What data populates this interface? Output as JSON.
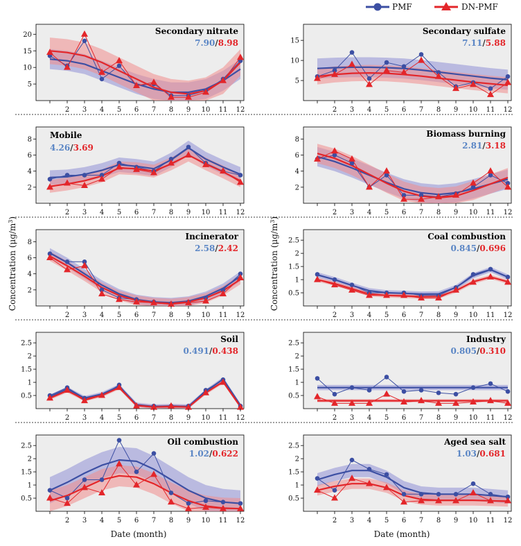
{
  "colors": {
    "pmf": "#3c4fa3",
    "dn": "#e3262a",
    "pmf_band": "#8f8fd6",
    "dn_band": "#f08c8c",
    "panel_bg": "#ededed",
    "sep": "#000000"
  },
  "legend": {
    "pmf": "PMF",
    "dn": "DN-PMF"
  },
  "xlabel": "Date (month)",
  "ylabel_left": "Concentration (μg/m",
  "ylabel_right": "Concentration (μg/m",
  "ylabel_sup": "3",
  "ylabel_close": ")",
  "stat_sep": "/",
  "chart_data": [
    {
      "type": "line",
      "title": "Secondary nitrate",
      "stat_pmf": "7.90",
      "stat_dn": "8.98",
      "x": [
        1,
        2,
        3,
        4,
        5,
        6,
        7,
        8,
        9,
        10,
        11,
        12
      ],
      "ylim": [
        0,
        23
      ],
      "yticks": [
        5,
        10,
        15,
        20
      ],
      "series": [
        {
          "name": "PMF",
          "values": [
            13.5,
            10.5,
            18.0,
            6.5,
            10.5,
            4.5,
            5.0,
            1.5,
            1.5,
            3.0,
            6.5,
            12.0
          ],
          "fit": [
            12.5,
            12.0,
            11.0,
            9.0,
            7.0,
            5.0,
            3.5,
            2.5,
            2.5,
            3.5,
            6.0,
            9.5
          ],
          "band": 3.0
        },
        {
          "name": "DN-PMF",
          "values": [
            14.5,
            10.0,
            20.0,
            8.5,
            12.0,
            4.5,
            5.5,
            1.0,
            1.0,
            2.5,
            6.0,
            13.0
          ],
          "fit": [
            15.0,
            14.5,
            13.5,
            11.5,
            9.0,
            6.5,
            4.0,
            2.5,
            2.0,
            3.0,
            6.0,
            11.5
          ],
          "band": 4.0
        }
      ]
    },
    {
      "type": "line",
      "title": "Secondary sulfate",
      "stat_pmf": "7.11",
      "stat_dn": "5.88",
      "x": [
        1,
        2,
        3,
        4,
        5,
        6,
        7,
        8,
        9,
        10,
        11,
        12
      ],
      "ylim": [
        0,
        19
      ],
      "yticks": [
        5,
        10,
        15
      ],
      "series": [
        {
          "name": "PMF",
          "values": [
            6.0,
            7.5,
            12.0,
            5.5,
            9.5,
            8.5,
            11.5,
            7.0,
            3.5,
            4.5,
            3.0,
            6.0
          ],
          "fit": [
            8.0,
            8.2,
            8.3,
            8.3,
            8.2,
            8.0,
            7.6,
            7.1,
            6.6,
            6.1,
            5.6,
            5.2
          ],
          "band": 2.5
        },
        {
          "name": "DN-PMF",
          "values": [
            5.5,
            6.5,
            9.0,
            4.0,
            7.5,
            7.0,
            10.0,
            6.0,
            3.0,
            4.0,
            1.5,
            4.5
          ],
          "fit": [
            6.0,
            6.5,
            6.8,
            6.9,
            6.8,
            6.5,
            6.1,
            5.6,
            5.1,
            4.6,
            4.2,
            3.8
          ],
          "band": 2.0
        }
      ]
    },
    {
      "type": "line",
      "title": "Mobile",
      "stat_pmf": "4.26",
      "stat_dn": "3.69",
      "x": [
        1,
        2,
        3,
        4,
        5,
        6,
        7,
        8,
        9,
        10,
        11,
        12
      ],
      "ylim": [
        0,
        9.5
      ],
      "yticks": [
        2,
        4,
        6,
        8
      ],
      "series": [
        {
          "name": "PMF",
          "values": [
            3.0,
            3.5,
            3.5,
            3.5,
            5.0,
            4.5,
            4.0,
            5.5,
            7.0,
            5.0,
            4.0,
            3.5
          ],
          "fit": [
            3.2,
            3.3,
            3.6,
            4.1,
            4.8,
            4.6,
            4.3,
            5.4,
            6.9,
            5.5,
            4.5,
            3.6
          ],
          "band": 0.9
        },
        {
          "name": "DN-PMF",
          "values": [
            2.0,
            2.5,
            2.2,
            3.0,
            4.5,
            4.2,
            3.8,
            5.0,
            6.0,
            4.8,
            4.0,
            2.6
          ],
          "fit": [
            2.1,
            2.4,
            2.8,
            3.4,
            4.4,
            4.3,
            4.0,
            4.9,
            6.0,
            4.9,
            3.9,
            2.8
          ],
          "band": 0.8
        }
      ]
    },
    {
      "type": "line",
      "title": "Biomass burning",
      "stat_pmf": "2.81",
      "stat_dn": "3.18",
      "x": [
        1,
        2,
        3,
        4,
        5,
        6,
        7,
        8,
        9,
        10,
        11,
        12
      ],
      "ylim": [
        0,
        9.5
      ],
      "yticks": [
        2,
        4,
        6,
        8
      ],
      "series": [
        {
          "name": "PMF",
          "values": [
            5.5,
            6.0,
            5.0,
            2.0,
            3.5,
            1.0,
            1.0,
            0.8,
            1.2,
            2.0,
            3.5,
            2.5
          ],
          "fit": [
            5.8,
            5.2,
            4.4,
            3.5,
            2.6,
            1.8,
            1.3,
            1.1,
            1.3,
            1.8,
            2.4,
            3.0
          ],
          "band": 1.2
        },
        {
          "name": "DN-PMF",
          "values": [
            5.5,
            6.5,
            5.5,
            2.0,
            4.0,
            0.5,
            0.5,
            0.8,
            1.0,
            2.5,
            4.0,
            2.0
          ],
          "fit": [
            6.2,
            5.6,
            4.7,
            3.6,
            2.5,
            1.5,
            0.9,
            0.7,
            0.9,
            1.6,
            2.4,
            3.2
          ],
          "band": 1.2
        }
      ]
    },
    {
      "type": "line",
      "title": "Incinerator",
      "stat_pmf": "2.58",
      "stat_dn": "2.42",
      "x": [
        1,
        2,
        3,
        4,
        5,
        6,
        7,
        8,
        9,
        10,
        11,
        12
      ],
      "ylim": [
        0,
        9.5
      ],
      "yticks": [
        2,
        4,
        6,
        8
      ],
      "series": [
        {
          "name": "PMF",
          "values": [
            6.5,
            5.5,
            5.5,
            2.0,
            1.0,
            0.8,
            0.5,
            0.3,
            0.5,
            1.0,
            2.0,
            4.0
          ],
          "fit": [
            6.6,
            5.4,
            4.0,
            2.6,
            1.5,
            0.8,
            0.5,
            0.4,
            0.6,
            1.2,
            2.2,
            3.7
          ],
          "band": 0.6
        },
        {
          "name": "DN-PMF",
          "values": [
            6.0,
            4.5,
            5.0,
            1.5,
            0.8,
            0.5,
            0.4,
            0.2,
            0.4,
            0.6,
            1.5,
            3.5
          ],
          "fit": [
            6.2,
            5.0,
            3.7,
            2.3,
            1.3,
            0.7,
            0.4,
            0.3,
            0.5,
            1.0,
            1.9,
            3.3
          ],
          "band": 0.6
        }
      ]
    },
    {
      "type": "line",
      "title": "Coal combustion",
      "stat_pmf": "0.845",
      "stat_dn": "0.696",
      "x": [
        1,
        2,
        3,
        4,
        5,
        6,
        7,
        8,
        9,
        10,
        11,
        12
      ],
      "ylim": [
        0,
        2.9
      ],
      "yticks": [
        0.5,
        1.0,
        1.5,
        2.0,
        2.5
      ],
      "series": [
        {
          "name": "PMF",
          "values": [
            1.2,
            1.0,
            0.8,
            0.5,
            0.5,
            0.5,
            0.4,
            0.4,
            0.7,
            1.2,
            1.4,
            1.1
          ],
          "fit": [
            1.18,
            1.0,
            0.78,
            0.58,
            0.5,
            0.48,
            0.45,
            0.46,
            0.7,
            1.15,
            1.38,
            1.1
          ],
          "band": 0.1
        },
        {
          "name": "DN-PMF",
          "values": [
            1.0,
            0.8,
            0.6,
            0.4,
            0.4,
            0.4,
            0.3,
            0.3,
            0.6,
            0.9,
            1.1,
            0.9
          ],
          "fit": [
            1.0,
            0.85,
            0.65,
            0.45,
            0.4,
            0.38,
            0.35,
            0.36,
            0.58,
            0.92,
            1.1,
            0.92
          ],
          "band": 0.08
        }
      ]
    },
    {
      "type": "line",
      "title": "Soil",
      "stat_pmf": "0.491",
      "stat_dn": "0.438",
      "x": [
        1,
        2,
        3,
        4,
        5,
        6,
        7,
        8,
        9,
        10,
        11,
        12
      ],
      "ylim": [
        0,
        2.9
      ],
      "yticks": [
        0.5,
        1.0,
        1.5,
        2.0,
        2.5
      ],
      "series": [
        {
          "name": "PMF",
          "values": [
            0.5,
            0.8,
            0.4,
            0.5,
            0.9,
            0.1,
            0.1,
            0.1,
            0.1,
            0.7,
            1.1,
            0.1
          ],
          "fit": [
            0.45,
            0.75,
            0.4,
            0.55,
            0.85,
            0.15,
            0.08,
            0.1,
            0.08,
            0.65,
            1.12,
            0.12
          ],
          "band": 0.08
        },
        {
          "name": "DN-PMF",
          "values": [
            0.4,
            0.7,
            0.3,
            0.5,
            0.8,
            0.1,
            0.05,
            0.1,
            0.05,
            0.6,
            1.0,
            0.05
          ],
          "fit": [
            0.4,
            0.68,
            0.35,
            0.5,
            0.8,
            0.12,
            0.06,
            0.08,
            0.06,
            0.6,
            1.02,
            0.08
          ],
          "band": 0.07
        }
      ]
    },
    {
      "type": "line",
      "title": "Industry",
      "stat_pmf": "0.805",
      "stat_dn": "0.310",
      "x": [
        1,
        2,
        3,
        4,
        5,
        6,
        7,
        8,
        9,
        10,
        11,
        12
      ],
      "ylim": [
        0,
        2.9
      ],
      "yticks": [
        0.5,
        1.0,
        1.5,
        2.0,
        2.5
      ],
      "series": [
        {
          "name": "PMF",
          "values": [
            1.15,
            0.55,
            0.8,
            0.7,
            1.2,
            0.65,
            0.7,
            0.6,
            0.55,
            0.8,
            0.95,
            0.65
          ],
          "fit": [
            0.8,
            0.8,
            0.8,
            0.8,
            0.8,
            0.8,
            0.8,
            0.8,
            0.8,
            0.8,
            0.8,
            0.8
          ],
          "band": 0.1
        },
        {
          "name": "DN-PMF",
          "values": [
            0.45,
            0.2,
            0.2,
            0.2,
            0.55,
            0.25,
            0.3,
            0.2,
            0.2,
            0.25,
            0.3,
            0.2
          ],
          "fit": [
            0.3,
            0.3,
            0.3,
            0.3,
            0.3,
            0.3,
            0.3,
            0.3,
            0.3,
            0.3,
            0.3,
            0.3
          ],
          "band": 0.06
        }
      ]
    },
    {
      "type": "line",
      "title": "Oil combustion",
      "stat_pmf": "1.02",
      "stat_dn": "0.622",
      "x": [
        1,
        2,
        3,
        4,
        5,
        6,
        7,
        8,
        9,
        10,
        11,
        12
      ],
      "ylim": [
        0,
        2.9
      ],
      "yticks": [
        0.5,
        1.0,
        1.5,
        2.0,
        2.5
      ],
      "series": [
        {
          "name": "PMF",
          "values": [
            0.8,
            0.5,
            1.2,
            1.2,
            2.7,
            1.5,
            2.2,
            0.7,
            0.3,
            0.4,
            0.35,
            0.3
          ],
          "fit": [
            0.8,
            1.1,
            1.45,
            1.75,
            1.95,
            1.9,
            1.6,
            1.2,
            0.8,
            0.5,
            0.35,
            0.3
          ],
          "band": 0.5
        },
        {
          "name": "DN-PMF",
          "values": [
            0.5,
            0.3,
            0.9,
            0.7,
            1.8,
            1.0,
            1.4,
            0.35,
            0.1,
            0.15,
            0.1,
            0.1
          ],
          "fit": [
            0.4,
            0.6,
            0.9,
            1.2,
            1.35,
            1.3,
            1.05,
            0.7,
            0.4,
            0.2,
            0.12,
            0.1
          ],
          "band": 0.4
        }
      ]
    },
    {
      "type": "line",
      "title": "Aged sea salt",
      "stat_pmf": "1.03",
      "stat_dn": "0.681",
      "x": [
        1,
        2,
        3,
        4,
        5,
        6,
        7,
        8,
        9,
        10,
        11,
        12
      ],
      "ylim": [
        0,
        2.9
      ],
      "yticks": [
        0.5,
        1.0,
        1.5,
        2.0,
        2.5
      ],
      "series": [
        {
          "name": "PMF",
          "values": [
            1.25,
            0.8,
            1.95,
            1.6,
            1.4,
            0.65,
            0.65,
            0.65,
            0.65,
            1.05,
            0.65,
            0.55
          ],
          "fit": [
            1.2,
            1.4,
            1.55,
            1.55,
            1.3,
            0.9,
            0.7,
            0.65,
            0.65,
            0.65,
            0.6,
            0.55
          ],
          "band": 0.25
        },
        {
          "name": "DN-PMF",
          "values": [
            0.8,
            0.5,
            1.25,
            1.05,
            0.9,
            0.35,
            0.4,
            0.4,
            0.4,
            0.7,
            0.4,
            0.4
          ],
          "fit": [
            0.8,
            0.95,
            1.05,
            1.05,
            0.9,
            0.6,
            0.45,
            0.42,
            0.42,
            0.42,
            0.4,
            0.38
          ],
          "band": 0.2
        }
      ]
    }
  ]
}
